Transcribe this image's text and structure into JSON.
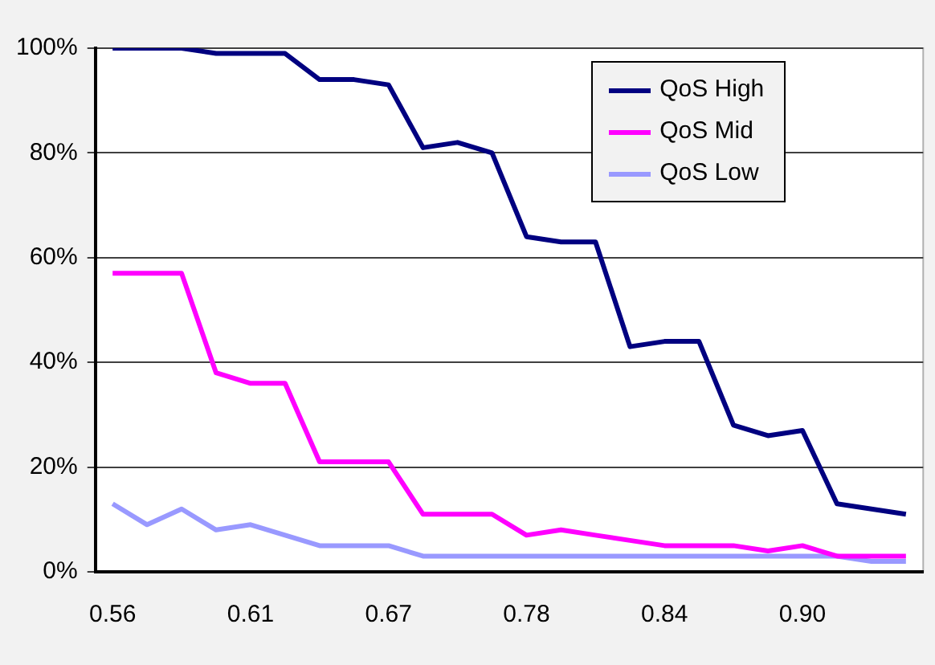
{
  "chart_data": {
    "type": "line",
    "categories": [
      "0.56",
      null,
      null,
      null,
      "0.61",
      null,
      null,
      null,
      "0.67",
      null,
      null,
      null,
      "0.78",
      null,
      null,
      null,
      "0.84",
      null,
      null,
      null,
      "0.90",
      null,
      null,
      null
    ],
    "series": [
      {
        "name": "QoS High",
        "color": "#000080",
        "values": [
          100,
          100,
          100,
          99,
          99,
          99,
          94,
          94,
          93,
          81,
          82,
          80,
          64,
          63,
          63,
          43,
          44,
          44,
          28,
          26,
          27,
          13,
          12,
          11
        ]
      },
      {
        "name": "QoS Mid",
        "color": "#ff00ff",
        "values": [
          57,
          57,
          57,
          38,
          36,
          36,
          21,
          21,
          21,
          11,
          11,
          11,
          7,
          8,
          7,
          6,
          5,
          5,
          5,
          4,
          5,
          3,
          3,
          3
        ]
      },
      {
        "name": "QoS Low",
        "color": "#9999ff",
        "values": [
          13,
          9,
          12,
          8,
          9,
          7,
          5,
          5,
          5,
          3,
          3,
          3,
          3,
          3,
          3,
          3,
          3,
          3,
          3,
          3,
          3,
          3,
          2,
          2
        ]
      }
    ],
    "ylim": [
      0,
      100
    ],
    "yticks": [
      {
        "value": 0,
        "label": "0%"
      },
      {
        "value": 20,
        "label": "20%"
      },
      {
        "value": 40,
        "label": "40%"
      },
      {
        "value": 60,
        "label": "60%"
      },
      {
        "value": 80,
        "label": "80%"
      },
      {
        "value": 100,
        "label": "100%"
      }
    ],
    "grid": "y",
    "legend": "top right",
    "marker": "none",
    "line_style": "solid"
  }
}
